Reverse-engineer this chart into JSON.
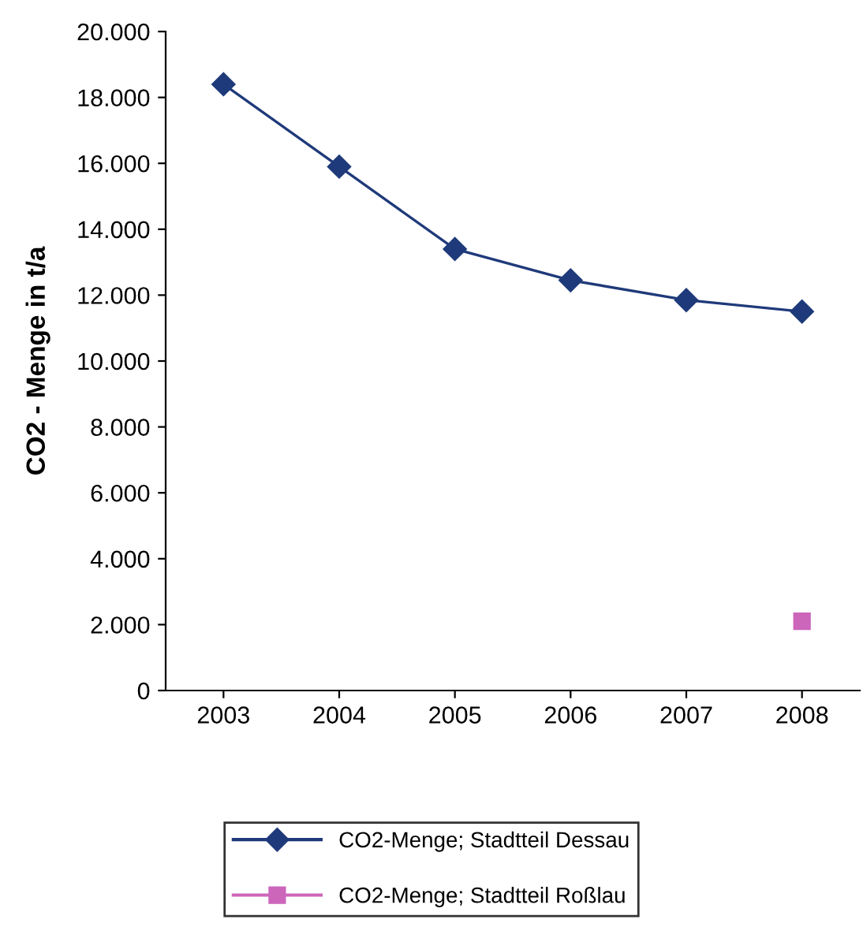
{
  "chart_data": {
    "type": "line",
    "ylabel": "CO2 - Menge in t/a",
    "categories": [
      "2003",
      "2004",
      "2005",
      "2006",
      "2007",
      "2008"
    ],
    "series": [
      {
        "name": "CO2-Menge; Stadtteil Dessau",
        "color": "#1f3a7a",
        "marker": "diamond",
        "values": [
          18400,
          15900,
          13400,
          12450,
          11850,
          11500
        ]
      },
      {
        "name": "CO2-Menge; Stadtteil Roßlau",
        "color": "#cc66bb",
        "marker": "square",
        "values": [
          null,
          null,
          null,
          null,
          null,
          2100
        ]
      }
    ],
    "ylim": [
      0,
      20000
    ],
    "yticks": [
      {
        "value": 0,
        "label": "0"
      },
      {
        "value": 2000,
        "label": "2.000"
      },
      {
        "value": 4000,
        "label": "4.000"
      },
      {
        "value": 6000,
        "label": "6.000"
      },
      {
        "value": 8000,
        "label": "8.000"
      },
      {
        "value": 10000,
        "label": "10.000"
      },
      {
        "value": 12000,
        "label": "12.000"
      },
      {
        "value": 14000,
        "label": "14.000"
      },
      {
        "value": 16000,
        "label": "16.000"
      },
      {
        "value": 18000,
        "label": "18.000"
      },
      {
        "value": 20000,
        "label": "20.000"
      }
    ],
    "grid": false,
    "legend": "bottom"
  }
}
